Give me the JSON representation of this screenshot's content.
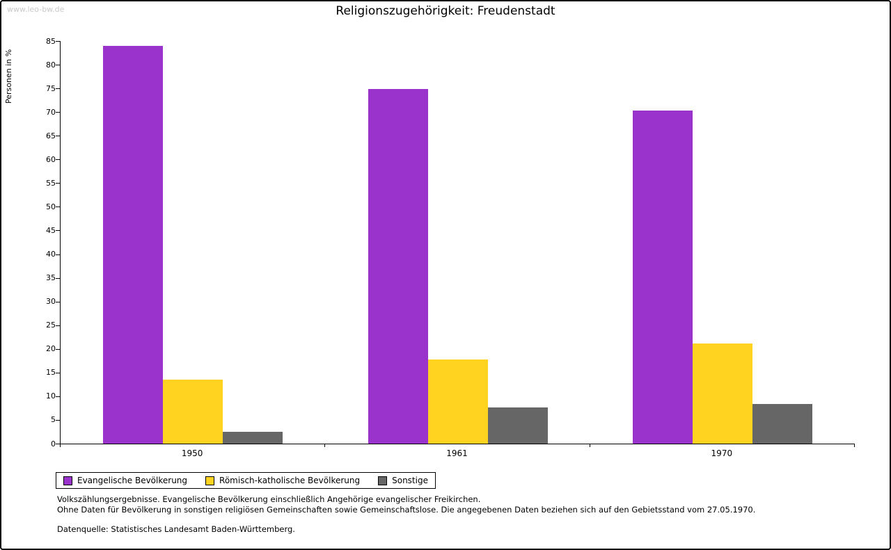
{
  "page": {
    "watermark": "www.leo-bw.de",
    "title": "Religionszugehörigkeit: Freudenstadt"
  },
  "chart_data": {
    "type": "bar",
    "title": "Religionszugehörigkeit: Freudenstadt",
    "xlabel": "",
    "ylabel": "Personen in %",
    "categories": [
      "1950",
      "1961",
      "1970"
    ],
    "series": [
      {
        "name": "Evangelische Bevölkerung",
        "color": "#9933CC",
        "values": [
          84.0,
          74.8,
          70.3
        ]
      },
      {
        "name": "Römisch-katholische Bevölkerung",
        "color": "#FFD320",
        "values": [
          13.5,
          17.8,
          21.2
        ]
      },
      {
        "name": "Sonstige",
        "color": "#666666",
        "values": [
          2.5,
          7.7,
          8.4
        ]
      }
    ],
    "ylim": [
      0,
      85
    ],
    "ytick_step": 5,
    "grid": false,
    "legend_position": "bottom-left"
  },
  "footnotes": {
    "line1": "Volkszählungsergebnisse. Evangelische Bevölkerung einschließlich Angehörige evangelischer Freikirchen.",
    "line2": "Ohne Daten für Bevölkerung in sonstigen religiösen Gemeinschaften sowie Gemeinschaftslose. Die angegebenen Daten beziehen sich auf den Gebietsstand vom 27.05.1970.",
    "source": "Datenquelle: Statistisches Landesamt Baden-Württemberg."
  }
}
